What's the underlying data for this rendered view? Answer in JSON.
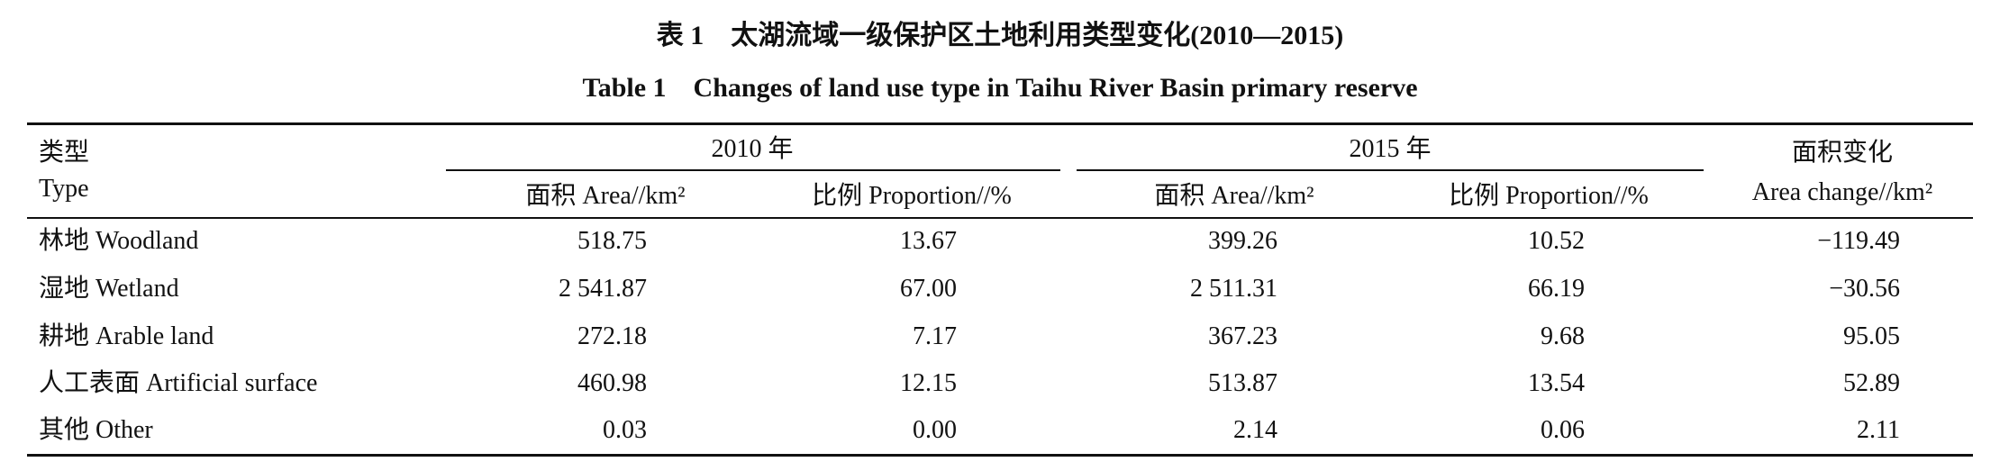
{
  "caption": {
    "title_cn": "表 1　太湖流域一级保护区土地利用类型变化(2010—2015)",
    "title_en": "Table 1　Changes of land use type in Taihu River Basin primary reserve"
  },
  "table": {
    "header": {
      "type_cn": "类型",
      "type_en": "Type",
      "year1": "2010 年",
      "year2": "2015 年",
      "change_cn": "面积变化",
      "change_en": "Area change//km²",
      "area1": "面积 Area//km²",
      "prop1": "比例 Proportion//%",
      "area2": "面积 Area//km²",
      "prop2": "比例 Proportion//%"
    },
    "rows": [
      [
        "林地 Woodland",
        "518.75",
        "13.67",
        "399.26",
        "10.52",
        "−119.49"
      ],
      [
        "湿地 Wetland",
        "2 541.87",
        "67.00",
        "2 511.31",
        "66.19",
        "−30.56"
      ],
      [
        "耕地 Arable land",
        "272.18",
        "7.17",
        "367.23",
        "9.68",
        "95.05"
      ],
      [
        "人工表面 Artificial surface",
        "460.98",
        "12.15",
        "513.87",
        "13.54",
        "52.89"
      ],
      [
        "其他 Other",
        "0.03",
        "0.00",
        "2.14",
        "0.06",
        "2.11"
      ]
    ]
  }
}
